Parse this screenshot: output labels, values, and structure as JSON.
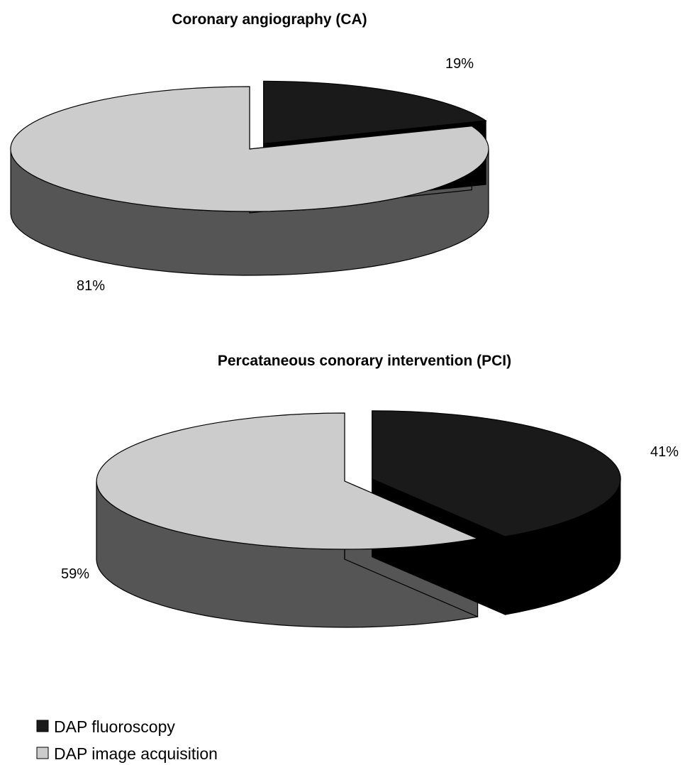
{
  "chart_data": [
    {
      "type": "pie",
      "title": "Coronary angiography (CA)",
      "slices": [
        {
          "label": "DAP fluoroscopy",
          "value": 19,
          "value_label": "19%"
        },
        {
          "label": "DAP image acquisition",
          "value": 81,
          "value_label": "81%"
        }
      ],
      "three_d": true,
      "exploded": true
    },
    {
      "type": "pie",
      "title": "Percataneous conorary intervention (PCI)",
      "slices": [
        {
          "label": "DAP fluoroscopy",
          "value": 41,
          "value_label": "41%"
        },
        {
          "label": "DAP image acquisition",
          "value": 59,
          "value_label": "59%"
        }
      ],
      "three_d": true,
      "exploded": true
    }
  ],
  "legend": {
    "placement": "bottom-left",
    "items": [
      {
        "label": "DAP fluoroscopy",
        "color": "#1a1a1a"
      },
      {
        "label": "DAP image acquisition",
        "color": "#cccccc"
      }
    ]
  },
  "colors": {
    "fluoroscopy_top": "#1a1a1a",
    "fluoroscopy_side": "#000000",
    "acquisition_top": "#cccccc",
    "acquisition_side": "#555555"
  }
}
